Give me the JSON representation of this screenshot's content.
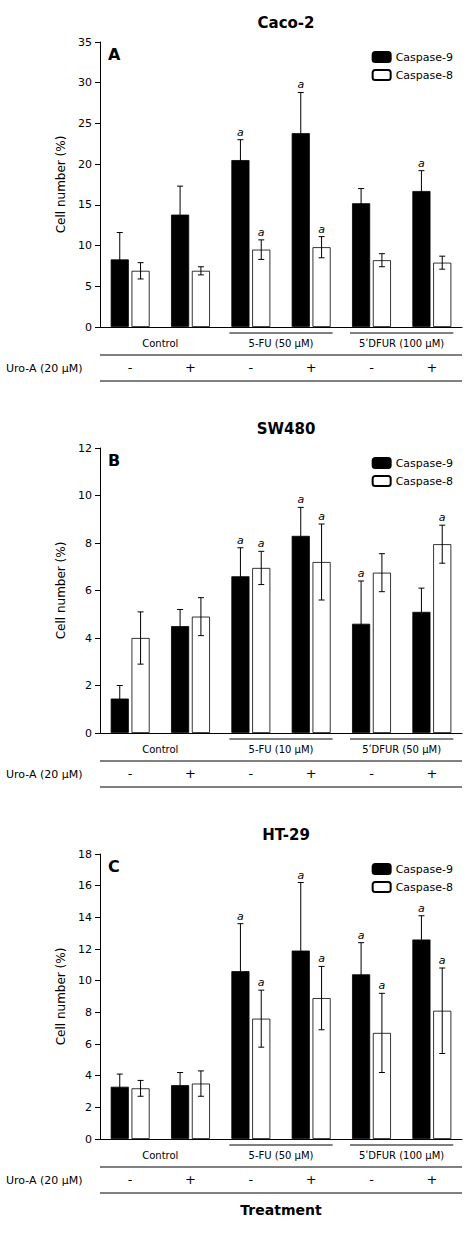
{
  "chart_data": [
    {
      "type": "bar",
      "title": "Caco-2",
      "panel_label": "A",
      "categories": [
        "-",
        "+",
        "-",
        "+",
        "-",
        "+"
      ],
      "group_labels": [
        "Control",
        "5-FU (50 μM)",
        "5ʹDFUR (100 μM)"
      ],
      "row_label": "Uro-A (20 μM)",
      "ylabel": "Cell number (%)",
      "ylim": [
        0,
        35
      ],
      "yticks": [
        0,
        5,
        10,
        15,
        20,
        25,
        30,
        35
      ],
      "grid": false,
      "legend": "upper right",
      "series": [
        {
          "name": "Caspase-9",
          "color": "#000000",
          "values": [
            8.3,
            13.8,
            20.5,
            23.8,
            15.2,
            16.7
          ],
          "errors": [
            3.3,
            3.5,
            2.5,
            5.0,
            1.8,
            2.5
          ],
          "sig_labels": [
            null,
            null,
            "a",
            "a",
            null,
            "a"
          ]
        },
        {
          "name": "Caspase-8",
          "color": "#ffffff",
          "values": [
            6.9,
            6.9,
            9.5,
            9.8,
            8.2,
            7.9
          ],
          "errors": [
            1.0,
            0.5,
            1.2,
            1.3,
            0.8,
            0.8
          ],
          "sig_labels": [
            null,
            null,
            "a",
            "a",
            null,
            null
          ]
        }
      ]
    },
    {
      "type": "bar",
      "title": "SW480",
      "panel_label": "B",
      "categories": [
        "-",
        "+",
        "-",
        "+",
        "-",
        "+"
      ],
      "group_labels": [
        "Control",
        "5-FU (10 μM)",
        "5ʹDFUR (50 μM)"
      ],
      "row_label": "Uro-A (20 μM)",
      "ylabel": "Cell number (%)",
      "ylim": [
        0,
        12
      ],
      "yticks": [
        0,
        2,
        4,
        6,
        8,
        10,
        12
      ],
      "grid": false,
      "legend": "upper right",
      "series": [
        {
          "name": "Caspase-9",
          "color": "#000000",
          "values": [
            1.45,
            4.5,
            6.6,
            8.3,
            4.6,
            5.1
          ],
          "errors": [
            0.55,
            0.7,
            1.2,
            1.2,
            1.8,
            1.0
          ],
          "sig_labels": [
            null,
            null,
            "a",
            "a",
            "a",
            null
          ]
        },
        {
          "name": "Caspase-8",
          "color": "#ffffff",
          "values": [
            4.0,
            4.9,
            6.95,
            7.2,
            6.75,
            7.95
          ],
          "errors": [
            1.1,
            0.8,
            0.7,
            1.6,
            0.8,
            0.8
          ],
          "sig_labels": [
            null,
            null,
            "a",
            "a",
            null,
            "a"
          ]
        }
      ]
    },
    {
      "type": "bar",
      "title": "HT-29",
      "panel_label": "C",
      "categories": [
        "-",
        "+",
        "-",
        "+",
        "-",
        "+"
      ],
      "group_labels": [
        "Control",
        "5-FU (50 μM)",
        "5ʹDFUR (100 μM)"
      ],
      "row_label": "Uro-A (20 μM)",
      "ylabel": "Cell number (%)",
      "xlabel": "Treatment",
      "ylim": [
        0,
        18
      ],
      "yticks": [
        0,
        2,
        4,
        6,
        8,
        10,
        12,
        14,
        16,
        18
      ],
      "grid": false,
      "legend": "upper right",
      "series": [
        {
          "name": "Caspase-9",
          "color": "#000000",
          "values": [
            3.3,
            3.4,
            10.6,
            11.9,
            10.4,
            12.6
          ],
          "errors": [
            0.8,
            0.8,
            3.0,
            4.3,
            2.0,
            1.5
          ],
          "sig_labels": [
            null,
            null,
            "a",
            "a",
            "a",
            "a"
          ]
        },
        {
          "name": "Caspase-8",
          "color": "#ffffff",
          "values": [
            3.2,
            3.5,
            7.6,
            8.9,
            6.7,
            8.1
          ],
          "errors": [
            0.5,
            0.8,
            1.8,
            2.0,
            2.5,
            2.7
          ],
          "sig_labels": [
            null,
            null,
            "a",
            "a",
            "a",
            "a"
          ]
        }
      ]
    }
  ]
}
